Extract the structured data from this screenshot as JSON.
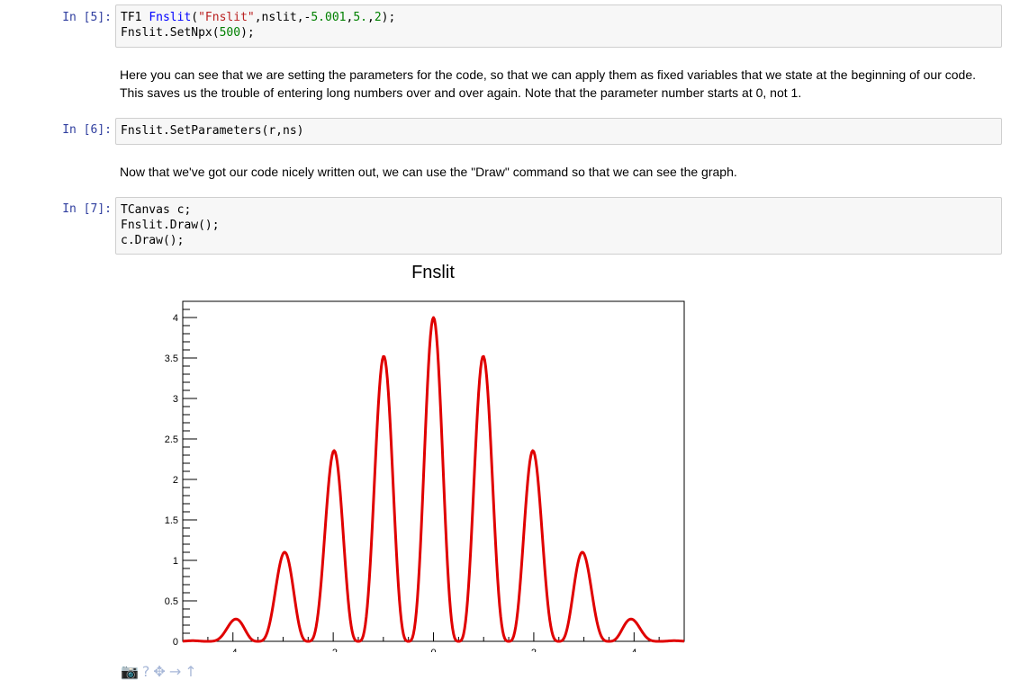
{
  "cells": [
    {
      "prompt": "In [5]:",
      "lines": [
        [
          {
            "t": "TF1 ",
            "c": ""
          },
          {
            "t": "Fnslit",
            "c": "tok-name"
          },
          {
            "t": "(",
            "c": ""
          },
          {
            "t": "\"Fnslit\"",
            "c": "tok-str"
          },
          {
            "t": ",nslit,-",
            "c": ""
          },
          {
            "t": "5.001",
            "c": "tok-num"
          },
          {
            "t": ",",
            "c": ""
          },
          {
            "t": "5.",
            "c": "tok-num"
          },
          {
            "t": ",",
            "c": ""
          },
          {
            "t": "2",
            "c": "tok-num"
          },
          {
            "t": ");",
            "c": ""
          }
        ],
        [
          {
            "t": "Fnslit.SetNpx(",
            "c": ""
          },
          {
            "t": "500",
            "c": "tok-num"
          },
          {
            "t": ");",
            "c": ""
          }
        ]
      ]
    },
    {
      "prompt": "In [6]:",
      "lines": [
        [
          {
            "t": "Fnslit.SetParameters(r,ns)",
            "c": ""
          }
        ]
      ]
    },
    {
      "prompt": "In [7]:",
      "lines": [
        [
          {
            "t": "TCanvas c;",
            "c": ""
          }
        ],
        [
          {
            "t": "Fnslit.Draw();",
            "c": ""
          }
        ],
        [
          {
            "t": "c.Draw();",
            "c": ""
          }
        ]
      ]
    }
  ],
  "markdown": {
    "para1_line1": "Here you can see that we are setting the parameters for the code, so that we can apply them as fixed variables that we state at the beginning of our code.",
    "para1_line2": "This saves us the trouble of entering long numbers over and over again. Note that the parameter number starts at 0, not 1.",
    "para2": "Now that we've got our code nicely written out, we can use the \"Draw\" command so that we can see the graph."
  },
  "chart_data": {
    "type": "line",
    "title": "Fnslit",
    "xlim": [
      -5.001,
      5.0
    ],
    "ylim": [
      0,
      4.2
    ],
    "xticks": [
      -4,
      -2,
      0,
      2,
      4
    ],
    "yticks": [
      0,
      0.5,
      1,
      1.5,
      2,
      2.5,
      3,
      3.5,
      4
    ],
    "ytick_labels": [
      "0",
      "0.5",
      "1",
      "1.5",
      "2",
      "2.5",
      "3",
      "3.5",
      "4"
    ],
    "xtick_labels": [
      "-4",
      "-2",
      "0",
      "2",
      "4"
    ],
    "line_color": "#e00000",
    "peaks": [
      {
        "x": -4.0,
        "y": 0.24
      },
      {
        "x": -3.0,
        "y": 1.04
      },
      {
        "x": -2.0,
        "y": 2.32
      },
      {
        "x": -1.0,
        "y": 3.5
      },
      {
        "x": 0.0,
        "y": 4.0
      },
      {
        "x": 1.0,
        "y": 3.5
      },
      {
        "x": 2.0,
        "y": 2.32
      },
      {
        "x": 3.0,
        "y": 1.04
      },
      {
        "x": 4.0,
        "y": 0.24
      }
    ],
    "series": [
      {
        "function": "sin(2*pi*x)^2/sin(pi*x/2)^2 * sinc(pi*x/5)^2",
        "npx": 500
      }
    ]
  },
  "toolbar": [
    {
      "icon": "camera-icon",
      "glyph": "📷"
    },
    {
      "icon": "help-icon",
      "glyph": "?"
    },
    {
      "icon": "move-icon",
      "glyph": "✥"
    },
    {
      "icon": "arrow-right-icon",
      "glyph": "→"
    },
    {
      "icon": "arrow-up-icon",
      "glyph": "↑"
    }
  ]
}
